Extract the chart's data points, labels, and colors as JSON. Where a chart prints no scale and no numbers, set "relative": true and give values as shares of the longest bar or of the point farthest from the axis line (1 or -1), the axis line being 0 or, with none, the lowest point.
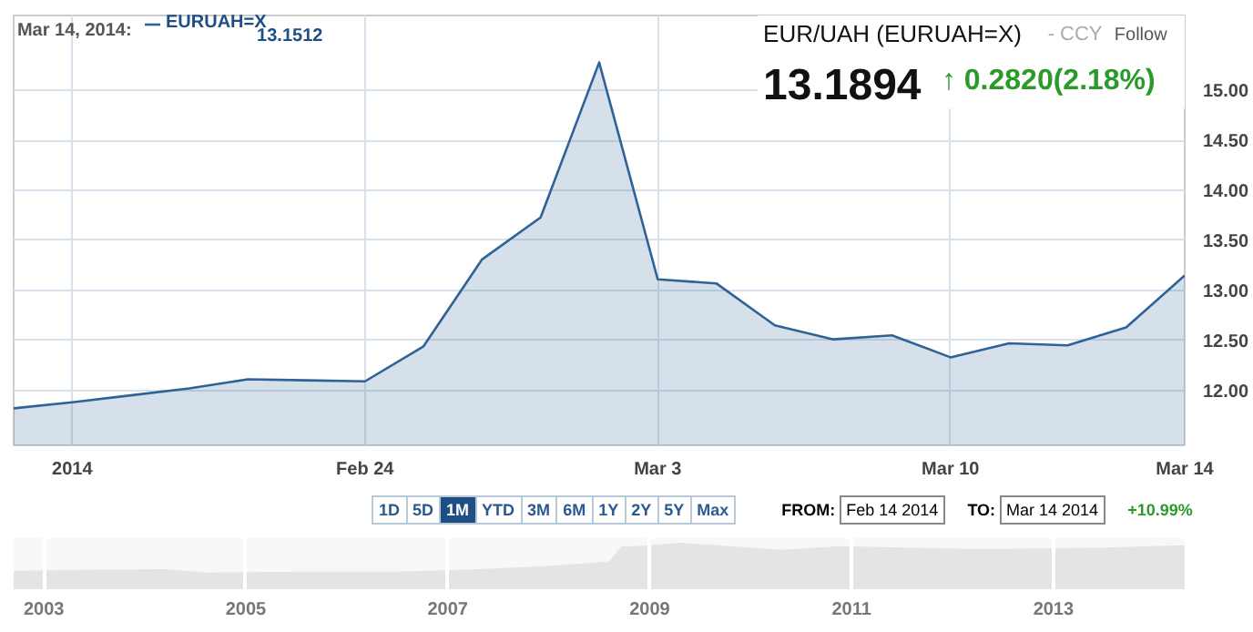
{
  "chart_data": [
    {
      "type": "area",
      "title": "EUR/UAH (EURUAH=X)",
      "categories": [
        null,
        "2014",
        null,
        null,
        null,
        null,
        "Feb 24",
        null,
        null,
        null,
        null,
        "Mar 3",
        null,
        null,
        null,
        null,
        "Mar 10",
        null,
        null,
        null,
        "Mar 14"
      ],
      "series": [
        {
          "name": "EURUAH=X",
          "color": "#2f6296",
          "values": [
            11.82,
            11.88,
            11.95,
            12.02,
            12.11,
            12.1,
            12.09,
            12.44,
            13.31,
            13.73,
            15.28,
            13.11,
            13.07,
            12.65,
            12.51,
            12.55,
            12.33,
            12.47,
            12.45,
            12.63,
            13.15
          ]
        }
      ],
      "ylim": [
        11.45,
        15.75
      ],
      "yticks": [
        {
          "value": 12,
          "label": "12.00"
        },
        {
          "value": 12.5,
          "label": "12.50"
        },
        {
          "value": 13,
          "label": "13.00"
        },
        {
          "value": 13.5,
          "label": "13.50"
        },
        {
          "value": 14,
          "label": "14.00"
        },
        {
          "value": 14.5,
          "label": "14.50"
        },
        {
          "value": 15,
          "label": "15.00"
        }
      ],
      "grid": true,
      "legend": "top left",
      "annotations": [
        "Mar 14, 2014:",
        "13.1512",
        "- CCY",
        "Follow",
        "13.1894",
        "↑ 0.2820(2.18%)",
        "1D",
        "5D",
        "1M",
        "YTD",
        "3M",
        "6M",
        "1Y",
        "2Y",
        "5Y",
        "Max",
        "FROM:",
        "Feb 14 2014",
        "TO:",
        "Mar 14 2014",
        "+10.99%"
      ]
    },
    {
      "type": "area",
      "relative": true,
      "x": [
        2002.7,
        2003.5,
        2004.2,
        2004.6,
        2005.5,
        2006.5,
        2007.3,
        2008.0,
        2008.6,
        2008.72,
        2008.8,
        2009.3,
        2009.8,
        2010.3,
        2010.9,
        2011.5,
        2012.2,
        2012.9,
        2013.5,
        2014.3
      ],
      "series": [
        {
          "color": "#e4e4e4",
          "values": [
            0.4,
            0.42,
            0.43,
            0.36,
            0.38,
            0.38,
            0.43,
            0.5,
            0.6,
            0.93,
            0.92,
            1.0,
            0.93,
            0.85,
            0.93,
            0.9,
            0.87,
            0.88,
            0.9,
            0.95
          ]
        }
      ],
      "xlim": [
        2002.7,
        2014.3
      ],
      "xticks": [
        2003,
        2005,
        2007,
        2009,
        2011,
        2013
      ],
      "grid": "x"
    }
  ]
}
